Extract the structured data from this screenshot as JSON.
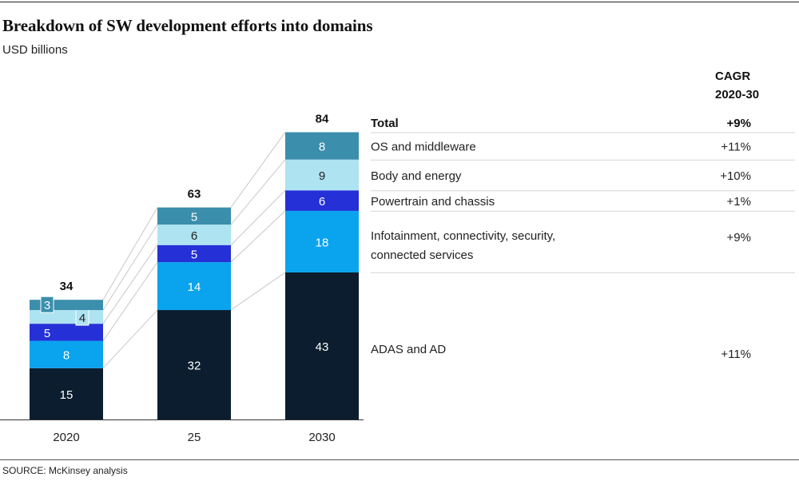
{
  "title": "Breakdown of SW development efforts into domains",
  "subtitle": "USD billions",
  "source": "SOURCE: McKinsey analysis",
  "cagr_header": [
    "CAGR",
    "2020-30"
  ],
  "total_row": {
    "label": "Total",
    "cagr": "+9%"
  },
  "colors": {
    "ADAS and AD": "#0b1d2e",
    "Infotainment": "#0aa3ee",
    "Powertrain and chassis": "#2530d6",
    "Body and energy": "#aee3f1",
    "OS and middleware": "#3b8eac",
    "connector": "#c8c8c8",
    "divider": "#d6d6d6"
  },
  "chart_data": {
    "type": "bar",
    "stacked": true,
    "categories": [
      "2020",
      "25",
      "2030"
    ],
    "totals": [
      34,
      63,
      84
    ],
    "ylim": [
      0,
      90
    ],
    "series": [
      {
        "name": "ADAS and AD",
        "values": [
          15,
          32,
          43
        ],
        "cagr": "+11%"
      },
      {
        "name": "Infotainment, connectivity, security, connected services",
        "label_lines": [
          "Infotainment, connectivity, security,",
          "connected services"
        ],
        "values": [
          8,
          14,
          18
        ],
        "cagr": "+9%"
      },
      {
        "name": "Powertrain and chassis",
        "values": [
          5,
          5,
          6
        ],
        "cagr": "+1%"
      },
      {
        "name": "Body and energy",
        "values": [
          4,
          6,
          9
        ],
        "cagr": "+10%"
      },
      {
        "name": "OS and middleware",
        "values": [
          3,
          5,
          8
        ],
        "cagr": "+11%"
      }
    ]
  }
}
